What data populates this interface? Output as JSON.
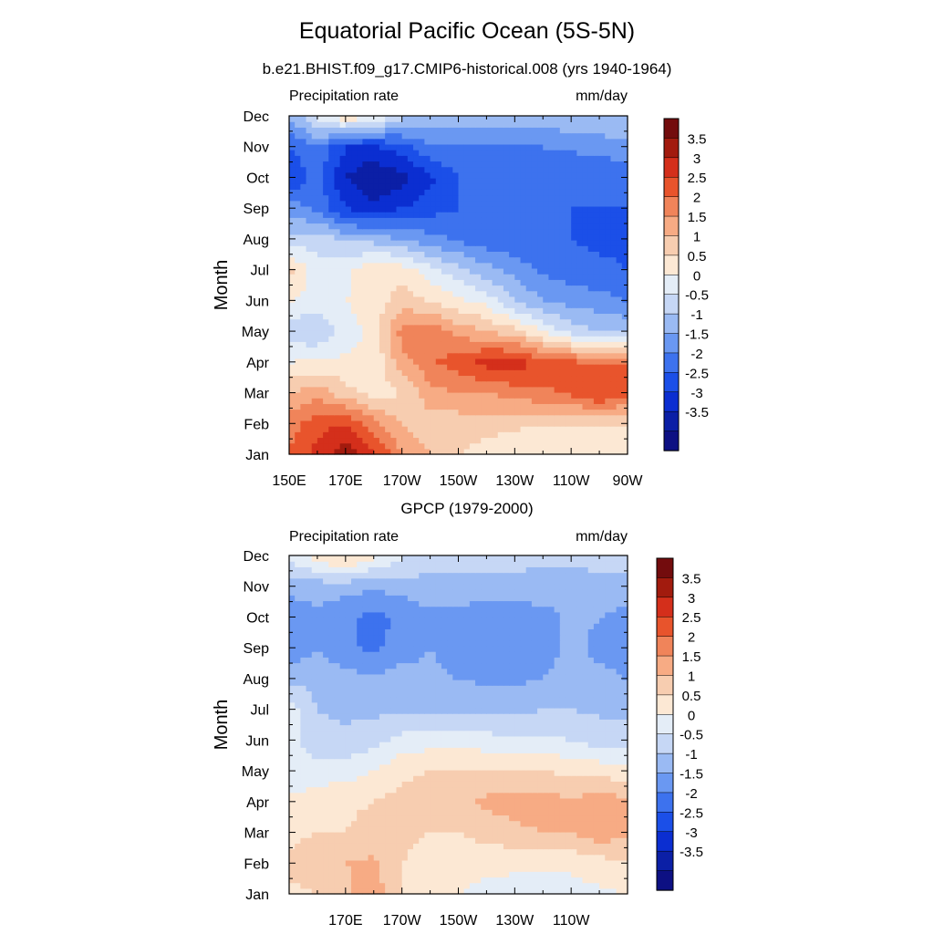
{
  "title": "Equatorial Pacific Ocean (5S-5N)",
  "chart_data": [
    {
      "type": "heatmap",
      "subtitle": "b.e21.BHIST.f09_g17.CMIP6-historical.008 (yrs 1940-1964)",
      "left_label": "Precipitation rate",
      "right_label": "mm/day",
      "ylabel": "Month",
      "xlabel": "",
      "x_ticks": [
        "150E",
        "170E",
        "170W",
        "150W",
        "130W",
        "110W",
        "90W"
      ],
      "x_tick_values": [
        150,
        170,
        190,
        210,
        230,
        250,
        270
      ],
      "y_ticks": [
        "Jan",
        "Feb",
        "Mar",
        "Apr",
        "May",
        "Jun",
        "Jul",
        "Aug",
        "Sep",
        "Oct",
        "Nov",
        "Dec"
      ],
      "xlim": [
        150,
        270
      ],
      "colorbar_labels": [
        "3.5",
        "3",
        "2.5",
        "2",
        "1.5",
        "1",
        "0.5",
        "0",
        "-0.5",
        "-1",
        "-1.5",
        "-2",
        "-2.5",
        "-3",
        "-3.5"
      ],
      "z": [
        [
          2.5,
          3.2,
          3.8,
          3.2,
          2.0,
          1.5,
          1.0,
          0.8,
          0.6,
          0.5,
          0.5,
          0.5,
          0.5
        ],
        [
          2.3,
          2.8,
          3.0,
          2.2,
          1.5,
          1.2,
          1.2,
          1.2,
          1.1,
          1.0,
          1.0,
          1.0,
          1.0
        ],
        [
          1.5,
          1.8,
          1.2,
          0.8,
          1.0,
          1.8,
          2.0,
          2.0,
          2.2,
          2.4,
          2.6,
          3.1,
          2.6
        ],
        [
          0.5,
          0.6,
          0.6,
          0.6,
          1.8,
          2.4,
          2.8,
          3.2,
          3.3,
          2.8,
          2.6,
          2.5,
          2.5
        ],
        [
          -0.3,
          -0.5,
          0.2,
          0.7,
          2.2,
          2.4,
          1.8,
          1.5,
          1.2,
          0.5,
          -0.2,
          -0.5,
          -0.6
        ],
        [
          0.5,
          0.3,
          0.5,
          0.8,
          1.2,
          1.0,
          0.6,
          0.3,
          -0.5,
          -1.0,
          -1.2,
          -1.3,
          -1.5
        ],
        [
          1.2,
          0.2,
          0.3,
          1.0,
          0.8,
          0.2,
          -0.3,
          -0.8,
          -1.2,
          -1.6,
          -1.8,
          -1.9,
          -2.0
        ],
        [
          -0.4,
          -0.2,
          -0.6,
          -0.7,
          -1.0,
          -1.3,
          -1.6,
          -1.8,
          -1.9,
          -2.0,
          -2.0,
          -2.1,
          -2.1
        ],
        [
          -1.2,
          -1.6,
          -2.5,
          -2.8,
          -2.5,
          -2.2,
          -2.0,
          -2.0,
          -2.0,
          -2.0,
          -2.0,
          -2.0,
          -2.0
        ],
        [
          -2.5,
          -1.8,
          -3.0,
          -3.5,
          -3.2,
          -2.6,
          -2.0,
          -2.0,
          -2.0,
          -2.0,
          -2.0,
          -2.0,
          -1.8
        ],
        [
          -2.0,
          -1.5,
          -2.5,
          -2.6,
          -2.2,
          -1.6,
          -1.5,
          -1.5,
          -1.5,
          -1.5,
          -1.4,
          -1.3,
          -1.2
        ],
        [
          -1.0,
          0.2,
          1.0,
          0.5,
          -0.3,
          -0.7,
          -0.8,
          -0.7,
          -0.7,
          -0.7,
          -0.6,
          -0.5,
          -0.5
        ]
      ]
    },
    {
      "type": "heatmap",
      "subtitle": "GPCP (1979-2000)",
      "left_label": "Precipitation rate",
      "right_label": "mm/day",
      "ylabel": "Month",
      "xlabel": "",
      "x_ticks": [
        "170E",
        "170W",
        "150W",
        "130W",
        "110W"
      ],
      "x_tick_values": [
        170,
        190,
        210,
        230,
        250
      ],
      "y_ticks": [
        "Jan",
        "Feb",
        "Mar",
        "Apr",
        "May",
        "Jun",
        "Jul",
        "Aug",
        "Sep",
        "Oct",
        "Nov",
        "Dec"
      ],
      "xlim": [
        150,
        270
      ],
      "colorbar_labels": [
        "3.5",
        "3",
        "2.5",
        "2",
        "1.5",
        "1",
        "0.5",
        "0",
        "-0.5",
        "-1",
        "-1.5",
        "-2",
        "-2.5",
        "-3",
        "-3.5"
      ],
      "z": [
        [
          0.8,
          1.0,
          1.4,
          1.8,
          1.0,
          0.6,
          0.5,
          0.4,
          0.3,
          0.2,
          0.3,
          0.4,
          0.5
        ],
        [
          1.2,
          1.4,
          1.5,
          1.6,
          1.0,
          0.7,
          0.6,
          0.6,
          0.6,
          0.6,
          0.6,
          0.8,
          0.9
        ],
        [
          0.8,
          1.0,
          1.0,
          1.2,
          1.2,
          1.0,
          1.0,
          1.2,
          1.4,
          1.5,
          1.5,
          1.8,
          1.6
        ],
        [
          0.6,
          0.8,
          0.9,
          1.0,
          1.2,
          1.2,
          1.4,
          1.6,
          1.7,
          1.7,
          1.6,
          1.8,
          1.6
        ],
        [
          0.1,
          0.2,
          0.3,
          0.5,
          0.9,
          1.0,
          1.1,
          1.1,
          1.1,
          1.0,
          0.9,
          0.8,
          0.7
        ],
        [
          0.2,
          -0.3,
          -0.4,
          -0.2,
          0.2,
          0.3,
          0.3,
          0.2,
          0.1,
          0.1,
          0.0,
          -0.2,
          -0.3
        ],
        [
          0.3,
          -0.5,
          -0.6,
          -0.6,
          -0.6,
          -0.7,
          -0.6,
          -0.6,
          -0.6,
          -0.5,
          -0.5,
          -0.6,
          -0.6
        ],
        [
          -0.6,
          -0.7,
          -0.8,
          -0.9,
          -0.8,
          -0.9,
          -1.0,
          -1.1,
          -1.1,
          -1.0,
          -0.8,
          -0.9,
          -1.0
        ],
        [
          -1.4,
          -1.0,
          -1.4,
          -1.6,
          -1.2,
          -1.0,
          -1.2,
          -1.3,
          -1.3,
          -1.2,
          -0.9,
          -1.1,
          -1.2
        ],
        [
          -1.4,
          -1.1,
          -1.4,
          -1.7,
          -1.4,
          -1.1,
          -1.2,
          -1.3,
          -1.3,
          -1.2,
          -0.9,
          -1.0,
          -1.2
        ],
        [
          -0.8,
          -0.8,
          -0.8,
          -0.9,
          -0.8,
          -0.7,
          -0.7,
          -0.7,
          -0.7,
          -0.7,
          -0.7,
          -0.7,
          -0.7
        ],
        [
          0.2,
          0.8,
          1.2,
          0.6,
          0.1,
          -0.2,
          -0.3,
          -0.3,
          -0.3,
          -0.4,
          -0.4,
          -0.3,
          -0.3
        ]
      ]
    }
  ],
  "colors": {
    "levels": [
      "#0d1083",
      "#0b1fa6",
      "#0b2ed1",
      "#1b4fe8",
      "#3d72ee",
      "#6a98f2",
      "#9abaf3",
      "#c6d7f5",
      "#e4edf7",
      "#fce8d4",
      "#f7cdb0",
      "#f7ab84",
      "#f0845a",
      "#e8542c",
      "#d42f1b",
      "#a21b0e",
      "#730c0d"
    ],
    "axis": "#000000"
  }
}
